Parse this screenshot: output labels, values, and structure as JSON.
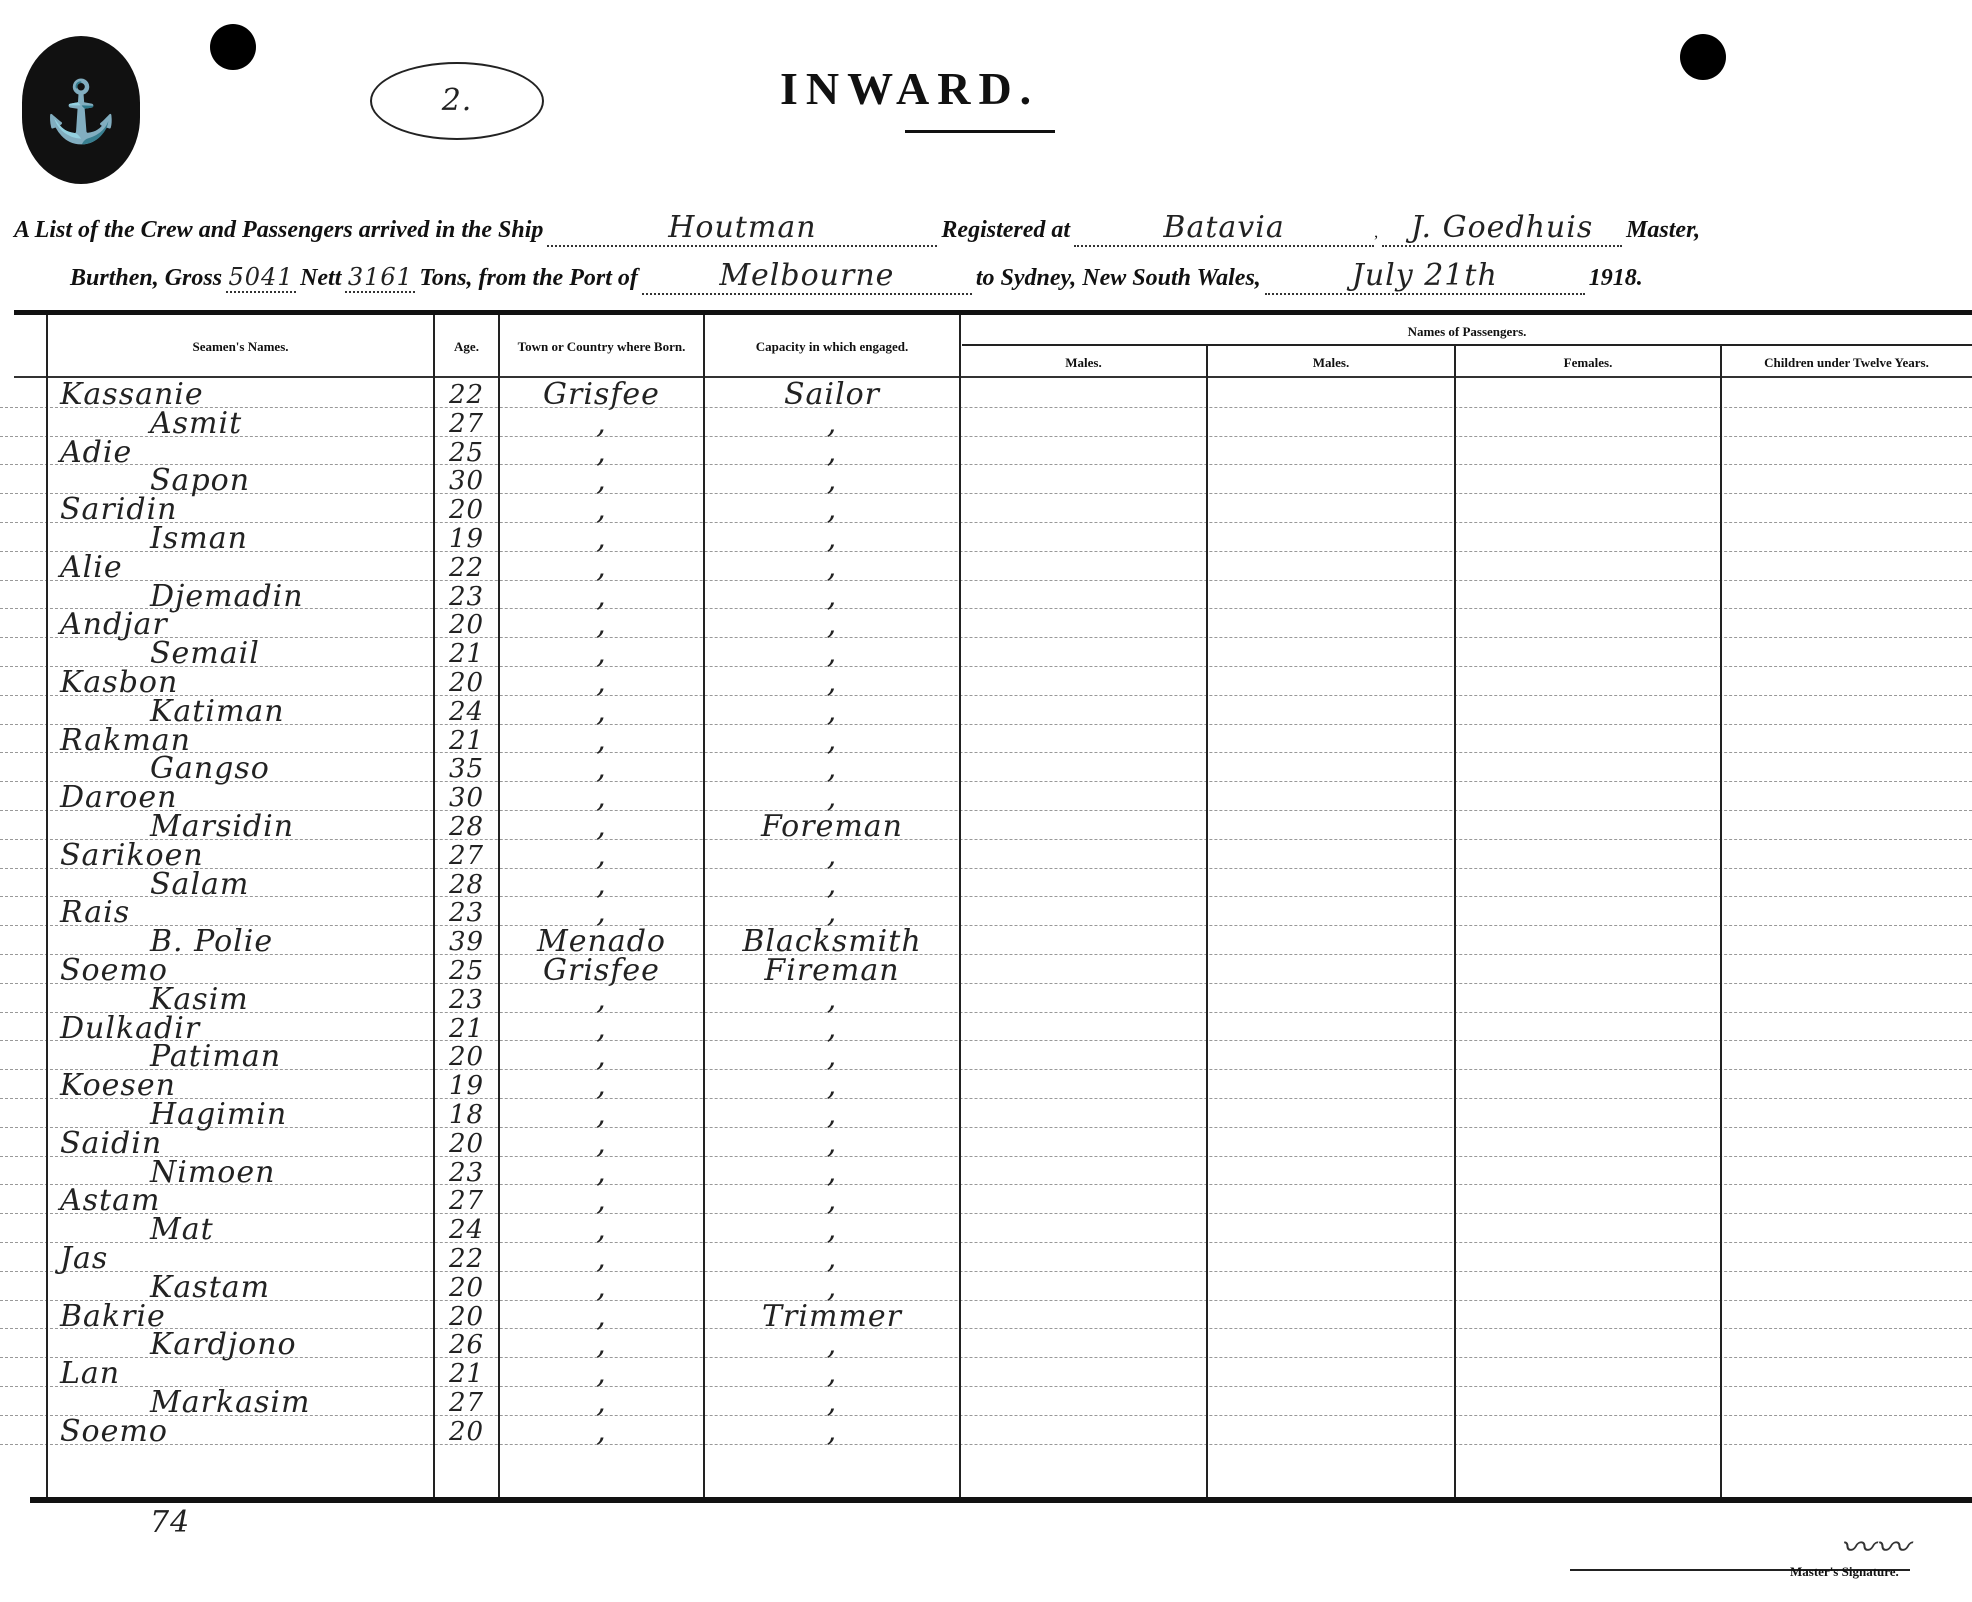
{
  "title": "INWARD.",
  "circled_number": "2.",
  "header": {
    "line1_prefix": "A List of the Crew and Passengers arrived in the Ship",
    "ship": "Houtman",
    "registered_label": "Registered at",
    "registered_at": "Batavia",
    "master_name": "J. Goedhuis",
    "master_label": "Master,",
    "burthen_label": "Burthen, Gross",
    "gross": "5041",
    "nett_label": "Nett",
    "nett": "3161",
    "tons_label": "Tons, from the Port of",
    "port": "Melbourne",
    "to_label": "to Sydney, New South Wales,",
    "date": "July 21th",
    "year": "1918",
    "year_end": "."
  },
  "columns": {
    "name": "Seamen's Names.",
    "age": "Age.",
    "town": "Town or Country where Born.",
    "capacity": "Capacity in which engaged.",
    "passengers": "Names of Passengers.",
    "males1": "Males.",
    "males2": "Males.",
    "females": "Females.",
    "children": "Children under Twelve Years."
  },
  "crew": [
    {
      "name": "Kassanie",
      "age": "22",
      "town": "Grisfee",
      "capacity": "Sailor"
    },
    {
      "name": "Asmit",
      "age": "27",
      "town": ",",
      "capacity": ","
    },
    {
      "name": "Adie",
      "age": "25",
      "town": ",",
      "capacity": ","
    },
    {
      "name": "Sapon",
      "age": "30",
      "town": ",",
      "capacity": ","
    },
    {
      "name": "Saridin",
      "age": "20",
      "town": ",",
      "capacity": ","
    },
    {
      "name": "Isman",
      "age": "19",
      "town": ",",
      "capacity": ","
    },
    {
      "name": "Alie",
      "age": "22",
      "town": ",",
      "capacity": ","
    },
    {
      "name": "Djemadin",
      "age": "23",
      "town": ",",
      "capacity": ","
    },
    {
      "name": "Andjar",
      "age": "20",
      "town": ",",
      "capacity": ","
    },
    {
      "name": "Semail",
      "age": "21",
      "town": ",",
      "capacity": ","
    },
    {
      "name": "Kasbon",
      "age": "20",
      "town": ",",
      "capacity": ","
    },
    {
      "name": "Katiman",
      "age": "24",
      "town": ",",
      "capacity": ","
    },
    {
      "name": "Rakman",
      "age": "21",
      "town": ",",
      "capacity": ","
    },
    {
      "name": "Gangso",
      "age": "35",
      "town": ",",
      "capacity": ","
    },
    {
      "name": "Daroen",
      "age": "30",
      "town": ",",
      "capacity": ","
    },
    {
      "name": "Marsidin",
      "age": "28",
      "town": ",",
      "capacity": "Foreman"
    },
    {
      "name": "Sarikoen",
      "age": "27",
      "town": ",",
      "capacity": ","
    },
    {
      "name": "Salam",
      "age": "28",
      "town": ",",
      "capacity": ","
    },
    {
      "name": "Rais",
      "age": "23",
      "town": ",",
      "capacity": ","
    },
    {
      "name": "B. Polie",
      "age": "39",
      "town": "Menado",
      "capacity": "Blacksmith"
    },
    {
      "name": "Soemo",
      "age": "25",
      "town": "Grisfee",
      "capacity": "Fireman"
    },
    {
      "name": "Kasim",
      "age": "23",
      "town": ",",
      "capacity": ","
    },
    {
      "name": "Dulkadir",
      "age": "21",
      "town": ",",
      "capacity": ","
    },
    {
      "name": "Patiman",
      "age": "20",
      "town": ",",
      "capacity": ","
    },
    {
      "name": "Koesen",
      "age": "19",
      "town": ",",
      "capacity": ","
    },
    {
      "name": "Hagimin",
      "age": "18",
      "town": ",",
      "capacity": ","
    },
    {
      "name": "Saidin",
      "age": "20",
      "town": ",",
      "capacity": ","
    },
    {
      "name": "Nimoen",
      "age": "23",
      "town": ",",
      "capacity": ","
    },
    {
      "name": "Astam",
      "age": "27",
      "town": ",",
      "capacity": ","
    },
    {
      "name": "Mat",
      "age": "24",
      "town": ",",
      "capacity": ","
    },
    {
      "name": "Jas",
      "age": "22",
      "town": ",",
      "capacity": ","
    },
    {
      "name": "Kastam",
      "age": "20",
      "town": ",",
      "capacity": ","
    },
    {
      "name": "Bakrie",
      "age": "20",
      "town": ",",
      "capacity": "Trimmer"
    },
    {
      "name": "Kardjono",
      "age": "26",
      "town": ",",
      "capacity": ","
    },
    {
      "name": "Lan",
      "age": "21",
      "town": ",",
      "capacity": ","
    },
    {
      "name": "Markasim",
      "age": "27",
      "town": ",",
      "capacity": ","
    },
    {
      "name": "Soemo",
      "age": "20",
      "town": ",",
      "capacity": ","
    }
  ],
  "folio": "74",
  "signature": "J. Goedhuis",
  "signature_label": "Master's Signature."
}
